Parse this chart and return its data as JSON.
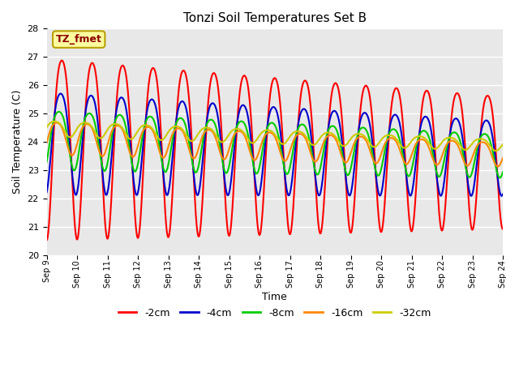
{
  "title": "Tonzi Soil Temperatures Set B",
  "xlabel": "Time",
  "ylabel": "Soil Temperature (C)",
  "ylim": [
    20.0,
    28.0
  ],
  "yticks": [
    20.0,
    21.0,
    22.0,
    23.0,
    24.0,
    25.0,
    26.0,
    27.0,
    28.0
  ],
  "annotation": "TZ_fmet",
  "legend_labels": [
    "-2cm",
    "-4cm",
    "-8cm",
    "-16cm",
    "-32cm"
  ],
  "line_colors": [
    "#ff0000",
    "#0000cc",
    "#00cc00",
    "#ff8800",
    "#cccc00"
  ],
  "line_widths": [
    1.5,
    1.5,
    1.5,
    1.5,
    1.5
  ],
  "bg_color": "#e8e8e8",
  "fig_bg": "#ffffff",
  "grid_color": "#ffffff",
  "xtick_labels": [
    "Sep 9",
    "Sep 10",
    "Sep 11",
    "Sep 12",
    "Sep 13",
    "Sep 14",
    "Sep 15",
    "Sep 16",
    "Sep 17",
    "Sep 18",
    "Sep 19",
    "Sep 20",
    "Sep 21",
    "Sep 22",
    "Sep 23",
    "Sep 24"
  ]
}
